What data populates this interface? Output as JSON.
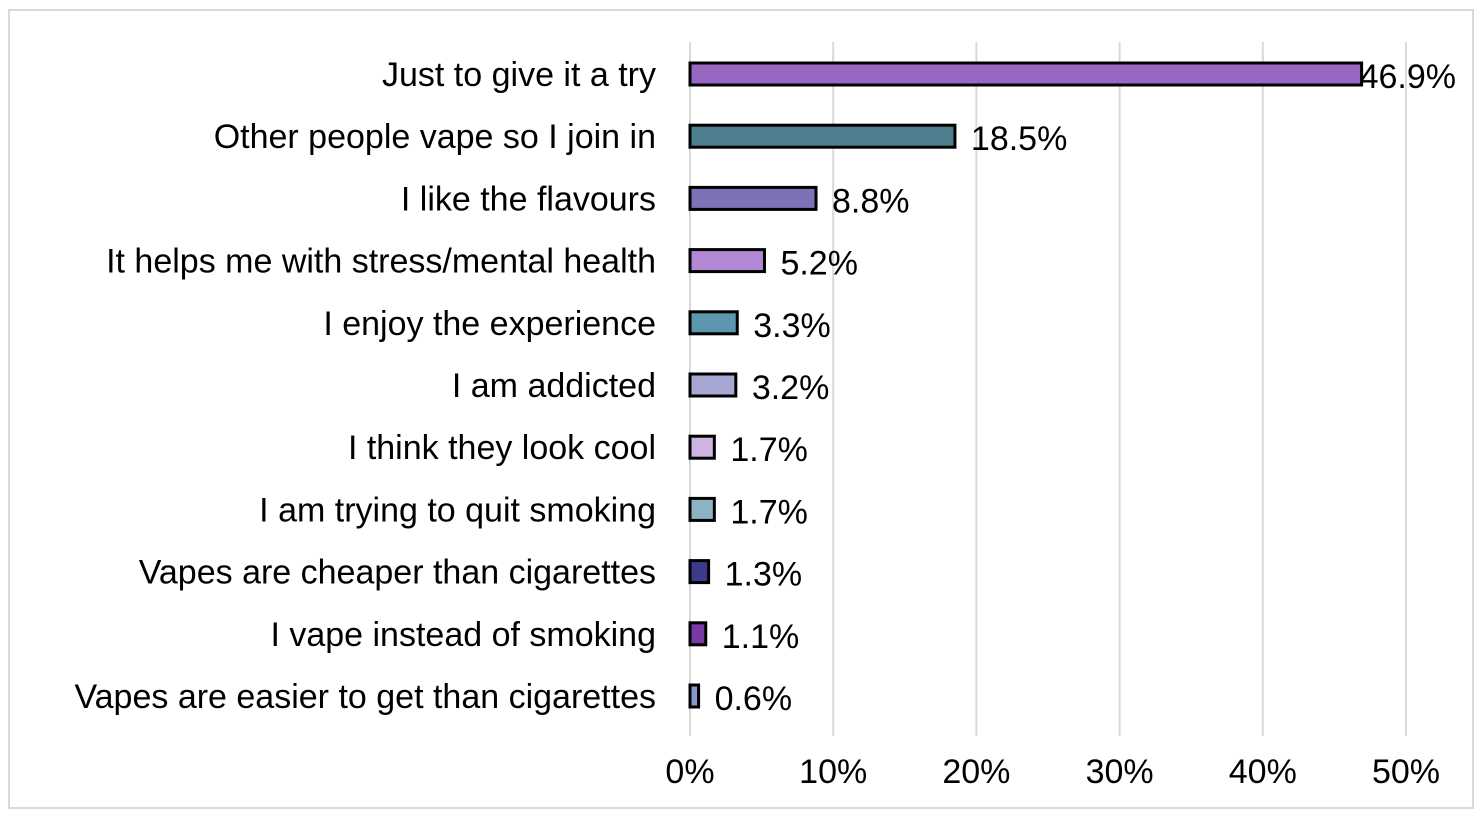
{
  "chart_data": {
    "type": "bar",
    "orientation": "horizontal",
    "categories": [
      "Just to give it a try",
      "Other people vape so I join in",
      "I like the flavours",
      "It helps me with stress/mental health",
      "I enjoy the experience",
      "I am addicted",
      "I think they look cool",
      "I am trying to quit smoking",
      "Vapes are cheaper than cigarettes",
      "I vape instead of smoking",
      "Vapes are easier to get than cigarettes"
    ],
    "values": [
      46.9,
      18.5,
      8.8,
      5.2,
      3.3,
      3.2,
      1.7,
      1.7,
      1.3,
      1.1,
      0.6
    ],
    "value_labels": [
      "46.9%",
      "18.5%",
      "8.8%",
      "5.2%",
      "3.3%",
      "3.2%",
      "1.7%",
      "1.7%",
      "1.3%",
      "1.1%",
      "0.6%"
    ],
    "colors": [
      "#9966c2",
      "#4d7f8f",
      "#7b72b8",
      "#b088d4",
      "#5c96ad",
      "#a8a6d2",
      "#cfb3e0",
      "#8cb3c4",
      "#3d3a8c",
      "#7a3aa6",
      "#8598c9"
    ],
    "xlim": [
      0,
      50
    ],
    "x_ticks": [
      "0%",
      "10%",
      "20%",
      "30%",
      "40%",
      "50%"
    ],
    "x_tick_values": [
      0,
      10,
      20,
      30,
      40,
      50
    ],
    "grid": true,
    "title": "",
    "xlabel": "",
    "ylabel": ""
  }
}
